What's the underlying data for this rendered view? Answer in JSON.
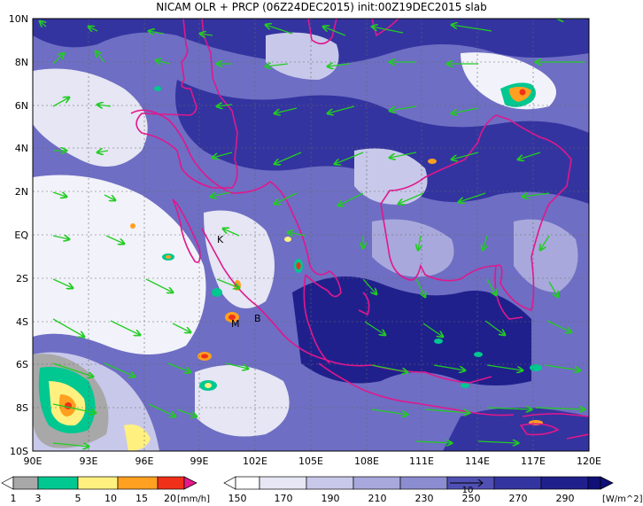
{
  "title": "NICAM OLR + PRCP (06Z24DEC2015) init:00Z19DEC2015 slab",
  "y_labels": [
    "10N",
    "8N",
    "6N",
    "4N",
    "2N",
    "EQ",
    "2S",
    "4S",
    "6S",
    "8S",
    "10S"
  ],
  "x_labels": [
    "90E",
    "93E",
    "96E",
    "99E",
    "102E",
    "105E",
    "108E",
    "111E",
    "114E",
    "117E",
    "120E"
  ],
  "place_labels": [
    "K",
    "B",
    "M"
  ],
  "precip_legend": {
    "ticks": [
      "1",
      "3",
      "5",
      "10",
      "15",
      "20"
    ],
    "unit": "[mm/h]",
    "colors": [
      "#ffffff",
      "#a8a8a8",
      "#00c890",
      "#fff080",
      "#ffa020",
      "#f03018",
      "#e8188c"
    ]
  },
  "olr_legend": {
    "ticks": [
      "150",
      "170",
      "190",
      "210",
      "230",
      "250",
      "270",
      "290"
    ],
    "unit": "[W/m^2]",
    "colors": [
      "#ffffff",
      "#e6e6f4",
      "#c8c8ea",
      "#a8a8dc",
      "#8c8cd0",
      "#6e6ec4",
      "#5050b4",
      "#3434a0",
      "#20208c",
      "#101078"
    ]
  },
  "vector_label": "10"
}
